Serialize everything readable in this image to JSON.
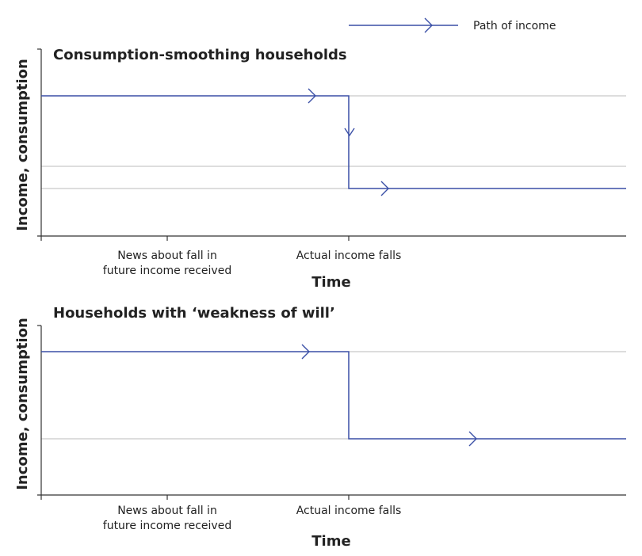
{
  "colors": {
    "income": "#3a4fa6",
    "grid": "#bbbbbb",
    "axis": "#333333",
    "text": "#222222"
  },
  "legend": {
    "label": "Path of income"
  },
  "chart_data": [
    {
      "type": "line",
      "title": "Consumption-smoothing households",
      "xlabel": "Time",
      "ylabel": "Income, consumption",
      "x_ticks": [
        {
          "id": "news",
          "lines": [
            "News about fall in",
            "future income received"
          ]
        },
        {
          "id": "fall",
          "lines": [
            "Actual income falls"
          ]
        }
      ],
      "gridlines": [
        "high",
        "smoothed",
        "low"
      ],
      "series": [
        {
          "name": "Path of income",
          "path": [
            {
              "x": "start",
              "y": "high"
            },
            {
              "x": "fall",
              "y": "high"
            },
            {
              "x": "fall",
              "y": "low"
            },
            {
              "x": "end",
              "y": "low"
            }
          ]
        }
      ]
    },
    {
      "type": "line",
      "title": "Households with ‘weakness of will’",
      "xlabel": "Time",
      "ylabel": "Income, consumption",
      "x_ticks": [
        {
          "id": "news",
          "lines": [
            "News about fall in",
            "future income received"
          ]
        },
        {
          "id": "fall",
          "lines": [
            "Actual income falls"
          ]
        }
      ],
      "gridlines": [
        "high",
        "low"
      ],
      "series": [
        {
          "name": "Path of income",
          "path": [
            {
              "x": "start",
              "y": "high"
            },
            {
              "x": "fall",
              "y": "high"
            },
            {
              "x": "fall",
              "y": "low"
            },
            {
              "x": "end",
              "y": "low"
            }
          ]
        }
      ]
    }
  ]
}
